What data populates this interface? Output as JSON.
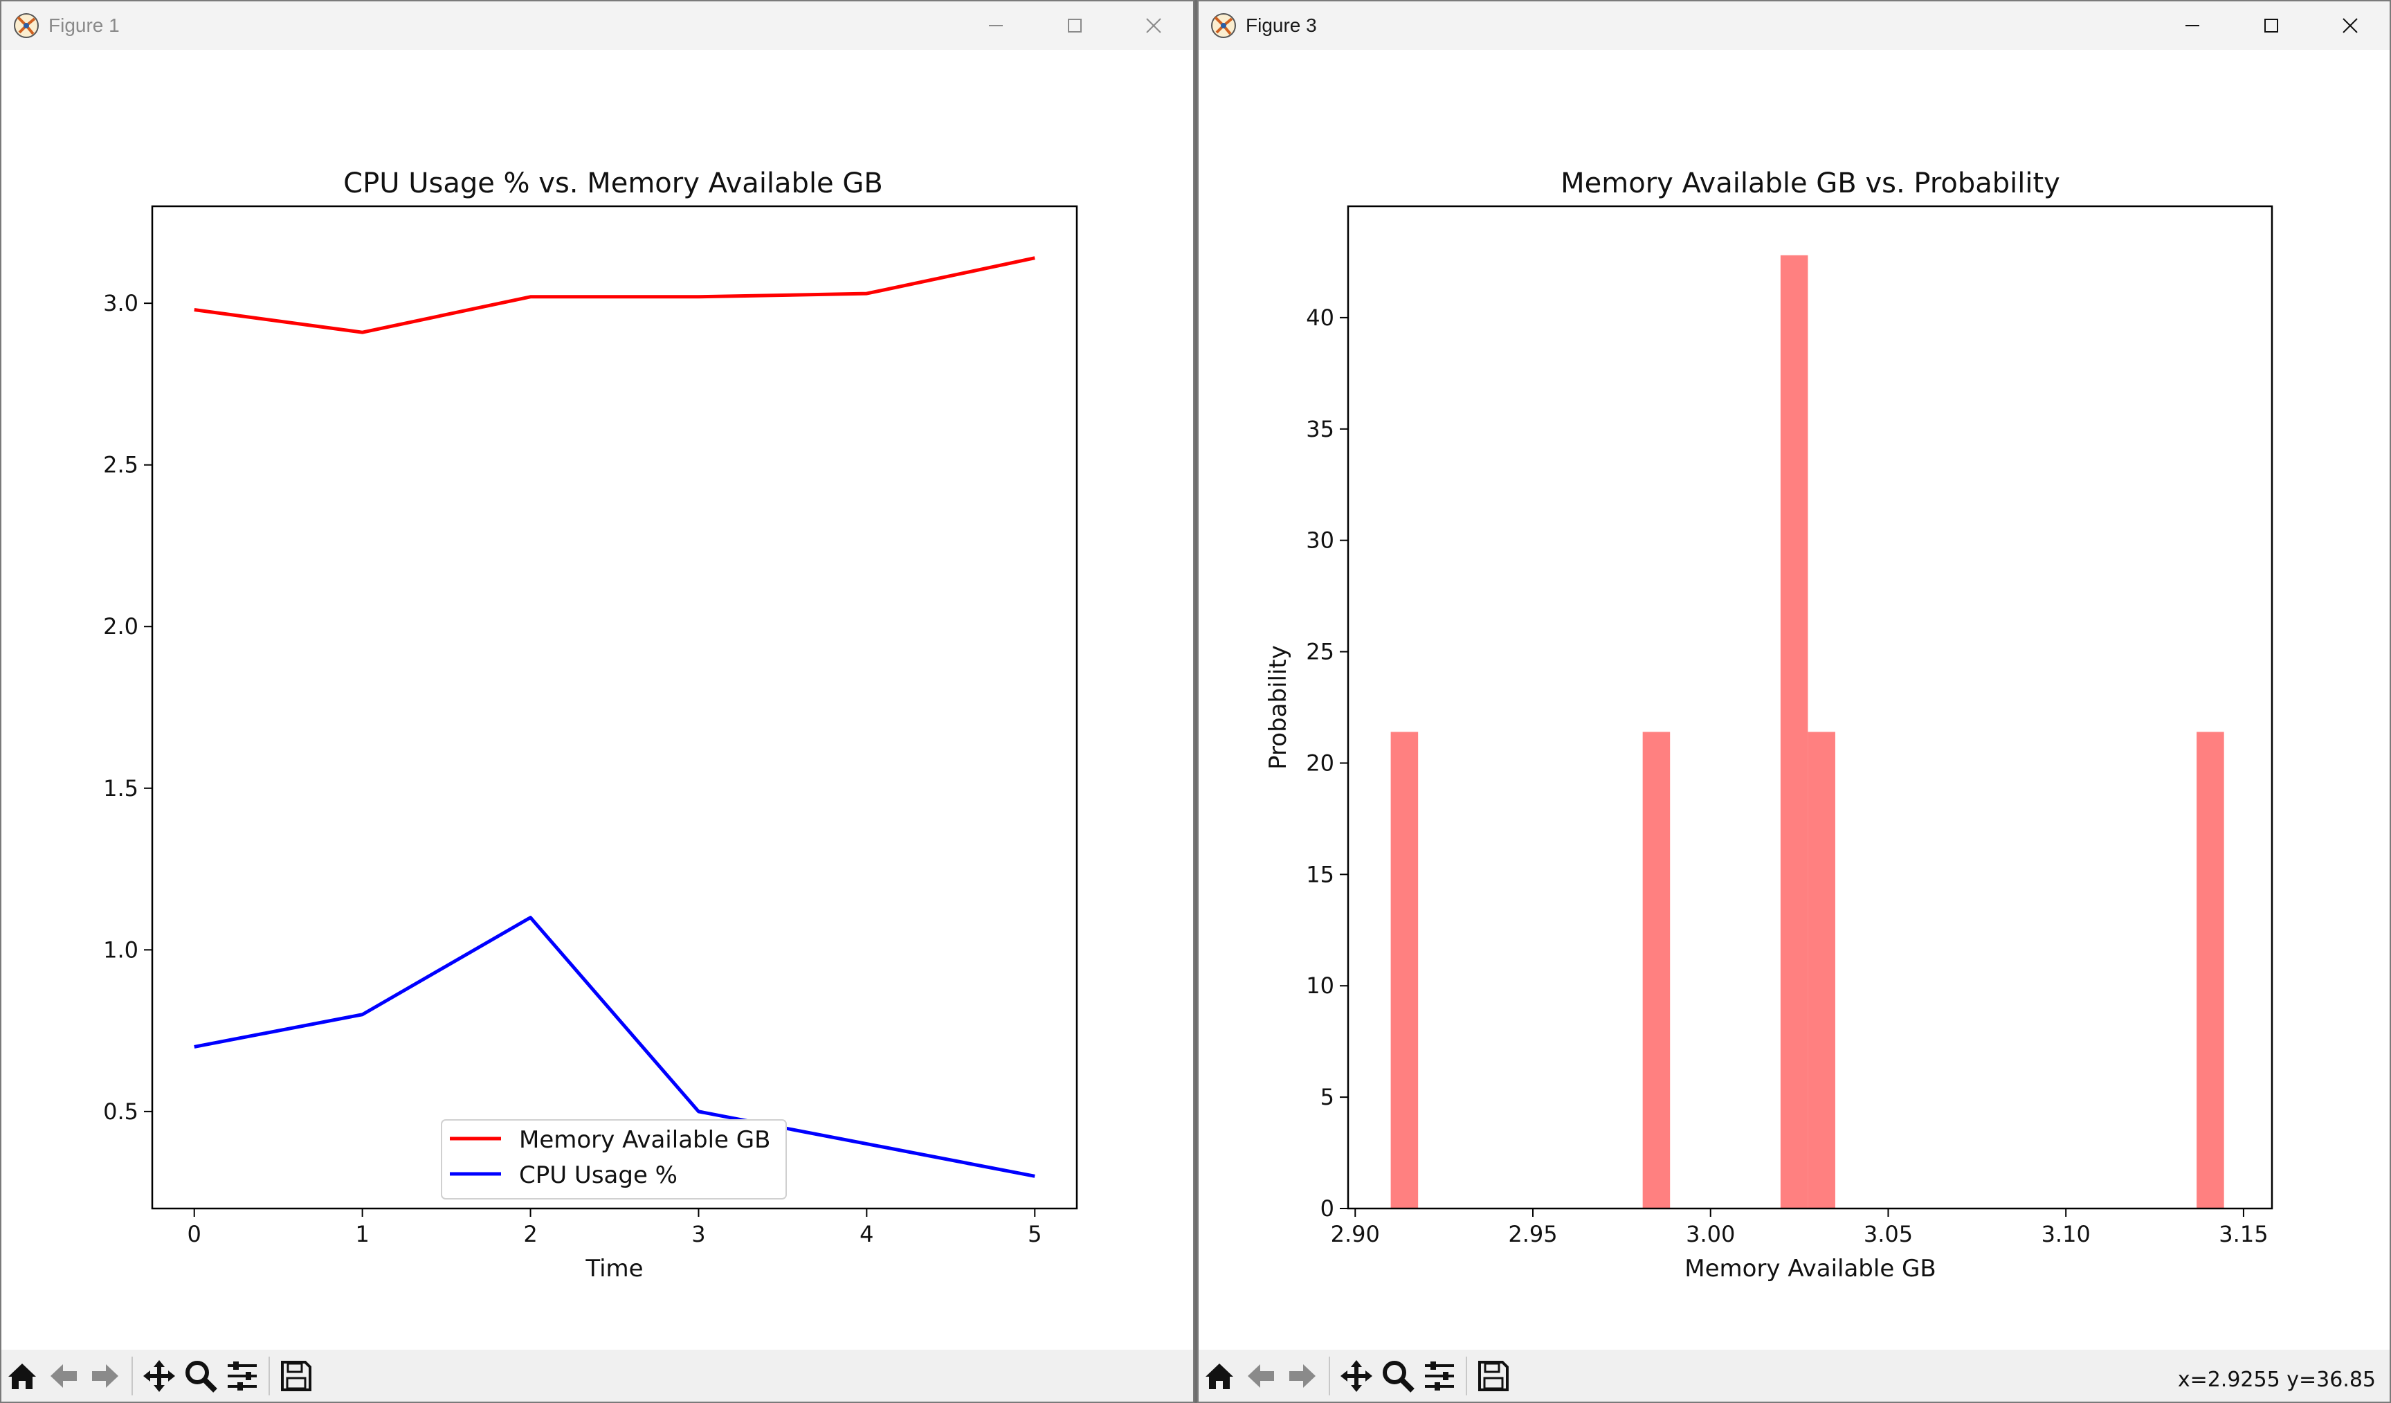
{
  "windows": [
    {
      "title": "Figure 1",
      "toolbar": [
        "home-icon",
        "back-icon",
        "forward-icon",
        "pan-icon",
        "zoom-icon",
        "configure-icon",
        "save-icon"
      ],
      "coords": ""
    },
    {
      "title": "Figure 3",
      "toolbar": [
        "home-icon",
        "back-icon",
        "forward-icon",
        "pan-icon",
        "zoom-icon",
        "configure-icon",
        "save-icon"
      ],
      "coords": "x=2.9255 y=36.85"
    }
  ],
  "chart_data": [
    {
      "type": "line",
      "title": "CPU Usage % vs. Memory Available GB",
      "xlabel": "Time",
      "ylabel": "",
      "x": [
        0,
        1,
        2,
        3,
        4,
        5
      ],
      "xlim": [
        -0.25,
        5.25
      ],
      "ylim": [
        0.2,
        3.3
      ],
      "xticks": [
        "0",
        "1",
        "2",
        "3",
        "4",
        "5"
      ],
      "yticks": [
        "0.5",
        "1.0",
        "1.5",
        "2.0",
        "2.5",
        "3.0"
      ],
      "series": [
        {
          "name": "Memory Available GB",
          "color": "#ff0000",
          "values": [
            2.98,
            2.91,
            3.02,
            3.02,
            3.03,
            3.14
          ]
        },
        {
          "name": "CPU Usage %",
          "color": "#0000ff",
          "values": [
            0.7,
            0.8,
            1.1,
            0.5,
            0.4,
            0.3
          ]
        }
      ],
      "legend": "lower-center",
      "grid": false
    },
    {
      "type": "bar",
      "title": "Memory Available GB vs. Probability",
      "xlabel": "Memory Available GB",
      "ylabel": "Probability",
      "xlim": [
        2.898,
        3.158
      ],
      "ylim": [
        0,
        45
      ],
      "xticks": [
        "2.90",
        "2.95",
        "3.00",
        "3.05",
        "3.10",
        "3.15"
      ],
      "yticks": [
        "0",
        "5",
        "10",
        "15",
        "20",
        "25",
        "30",
        "35",
        "40"
      ],
      "bar_color": "#ff8080",
      "bars": [
        {
          "start": 2.91,
          "end": 2.9177,
          "value": 21.4
        },
        {
          "start": 2.9809,
          "end": 2.9886,
          "value": 21.4
        },
        {
          "start": 3.0197,
          "end": 3.0274,
          "value": 42.8
        },
        {
          "start": 3.0274,
          "end": 3.0351,
          "value": 21.4
        },
        {
          "start": 3.1368,
          "end": 3.1445,
          "value": 21.4
        }
      ],
      "grid": false
    }
  ]
}
